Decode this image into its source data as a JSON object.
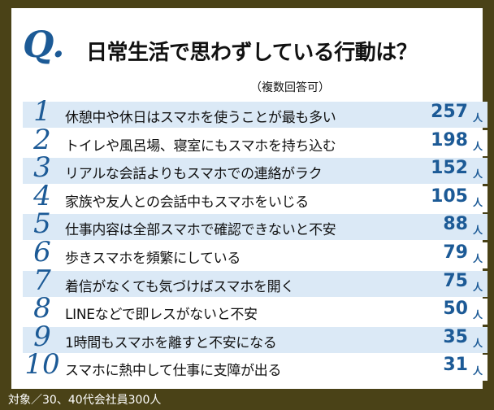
{
  "header": {
    "q_mark": "Q.",
    "title": "日常生活で思わずしている行動は？",
    "note": "（複数回答可）"
  },
  "colors": {
    "accent": "#1c5a96",
    "frame": "#4a4217",
    "row_bg": "#dbe9f6"
  },
  "unit": "人",
  "footer": "対象／30、40代会社員300人",
  "chart_data": {
    "type": "bar",
    "title": "日常生活で思わずしている行動は？",
    "subtitle": "（複数回答可）",
    "unit": "人",
    "ranks": [
      "1",
      "2",
      "3",
      "4",
      "5",
      "6",
      "7",
      "8",
      "9",
      "10"
    ],
    "categories": [
      "休憩中や休日はスマホを使うことが最も多い",
      "トイレや風呂場、寝室にもスマホを持ち込む",
      "リアルな会話よりもスマホでの連絡がラク",
      "家族や友人との会話中もスマホをいじる",
      "仕事内容は全部スマホで確認できないと不安",
      "歩きスマホを頻繁にしている",
      "着信がなくても気づけばスマホを開く",
      "LINEなどで即レスがないと不安",
      "1時間もスマホを離すと不安になる",
      "スマホに熱中して仕事に支障が出る"
    ],
    "values": [
      257,
      198,
      152,
      105,
      88,
      79,
      75,
      50,
      35,
      31
    ]
  }
}
